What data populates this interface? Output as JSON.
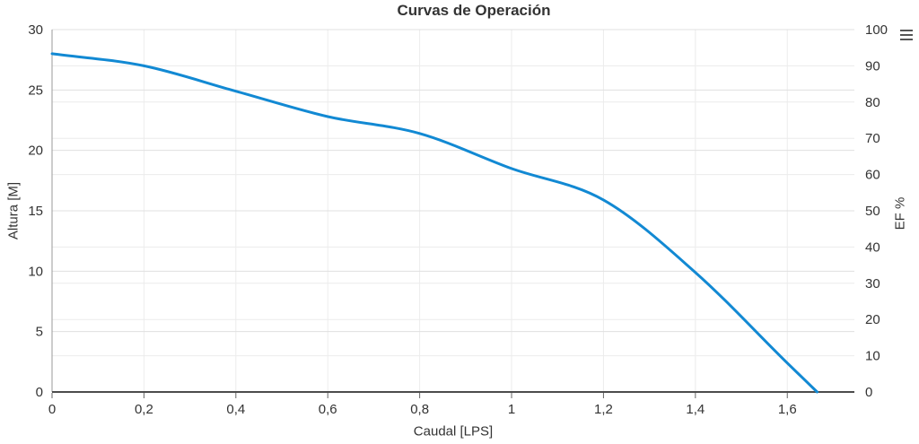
{
  "chart": {
    "title": "Curvas de Operación"
  },
  "chart_data": {
    "type": "line",
    "title": "Curvas de Operación",
    "xlabel": "Caudal [LPS]",
    "ylabel": "Altura [M]",
    "ylabel_right": "EF %",
    "xlim": [
      0,
      1.746
    ],
    "ylim": [
      0,
      30
    ],
    "ylim_right": [
      0,
      100
    ],
    "grid": true,
    "legend": false,
    "x_ticks": [
      {
        "value": 0,
        "label": "0"
      },
      {
        "value": 0.2,
        "label": "0,2"
      },
      {
        "value": 0.4,
        "label": "0,4"
      },
      {
        "value": 0.6,
        "label": "0,6"
      },
      {
        "value": 0.8,
        "label": "0,8"
      },
      {
        "value": 1,
        "label": "1"
      },
      {
        "value": 1.2,
        "label": "1,2"
      },
      {
        "value": 1.4,
        "label": "1,4"
      },
      {
        "value": 1.6,
        "label": "1,6"
      }
    ],
    "y_ticks_left": [
      {
        "value": 0,
        "label": "0"
      },
      {
        "value": 5,
        "label": "5"
      },
      {
        "value": 10,
        "label": "10"
      },
      {
        "value": 15,
        "label": "15"
      },
      {
        "value": 20,
        "label": "20"
      },
      {
        "value": 25,
        "label": "25"
      },
      {
        "value": 30,
        "label": "30"
      }
    ],
    "y_ticks_right": [
      {
        "value": 0,
        "label": "0"
      },
      {
        "value": 10,
        "label": "10"
      },
      {
        "value": 20,
        "label": "20"
      },
      {
        "value": 30,
        "label": "30"
      },
      {
        "value": 40,
        "label": "40"
      },
      {
        "value": 50,
        "label": "50"
      },
      {
        "value": 60,
        "label": "60"
      },
      {
        "value": 70,
        "label": "70"
      },
      {
        "value": 80,
        "label": "80"
      },
      {
        "value": 90,
        "label": "90"
      },
      {
        "value": 100,
        "label": "100"
      }
    ],
    "series": [
      {
        "name": "altura-vs-caudal",
        "axis": "left",
        "color": "#1289d3",
        "points": [
          [
            0,
            28
          ],
          [
            0.2,
            27
          ],
          [
            0.4,
            24.9
          ],
          [
            0.6,
            22.8
          ],
          [
            0.8,
            21.4
          ],
          [
            1,
            18.5
          ],
          [
            1.2,
            15.9
          ],
          [
            1.4,
            9.9
          ],
          [
            1.6,
            2.4
          ],
          [
            1.665,
            0
          ]
        ]
      }
    ],
    "colors": {
      "line": "#1289d3",
      "grid_major": "#e0e0e0",
      "grid_minor": "#ececec",
      "x_axis_line": "#4c4c4c",
      "y_axis_line": "#999999",
      "tick_mark": "#666666",
      "text": "#333333"
    }
  }
}
